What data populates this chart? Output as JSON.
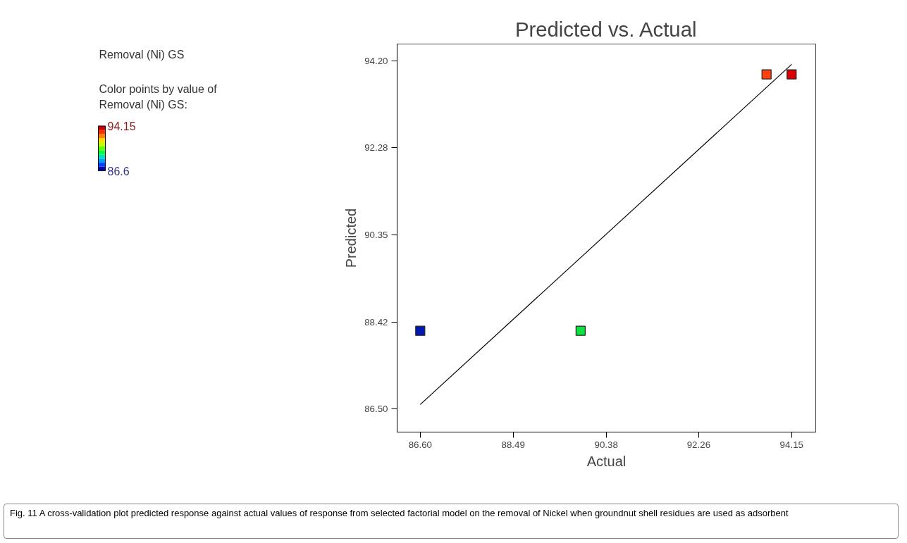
{
  "chart_data": {
    "type": "scatter",
    "title": "Predicted vs. Actual",
    "subtitle": "Removal (Ni) GS",
    "xlabel": "Actual",
    "ylabel": "Predicted",
    "clabel": "Color points by value of\nRemoval (Ni) GS:",
    "x": [
      86.6,
      89.86,
      93.64,
      94.15
    ],
    "series": [
      {
        "values": [
          88.23,
          88.23,
          93.9,
          93.9
        ],
        "colors": [
          "#0018b0",
          "#10e040",
          "#ff4010",
          "#dd0000"
        ]
      },
      {
        "type": "line",
        "color": "#000000",
        "marker": "none",
        "x": [
          86.6,
          94.15
        ],
        "values": [
          86.6,
          94.12
        ]
      }
    ],
    "clim": [
      86.6,
      94.15
    ],
    "cticks": [
      {
        "value": 86.6,
        "label": "86.6"
      },
      {
        "value": 94.15,
        "label": "94.15"
      }
    ],
    "xlim": [
      86.13,
      94.64
    ],
    "ylim": [
      85.99,
      94.57
    ],
    "xticks": [
      {
        "value": 86.6,
        "label": "86.60"
      },
      {
        "value": 88.49,
        "label": "88.49"
      },
      {
        "value": 90.38,
        "label": "90.38"
      },
      {
        "value": 92.26,
        "label": "92.26"
      },
      {
        "value": 94.15,
        "label": "94.15"
      }
    ],
    "yticks": [
      {
        "value": 86.5,
        "label": "86.50"
      },
      {
        "value": 88.42,
        "label": "88.42"
      },
      {
        "value": 90.35,
        "label": "90.35"
      },
      {
        "value": 92.28,
        "label": "92.28"
      },
      {
        "value": 94.2,
        "label": "94.20"
      }
    ],
    "marker": "square",
    "grid": false,
    "annotations": [
      "Fig. 11  A cross-validation plot predicted response against actual values of response from selected factorial model on the removal of Nickel when groundnut shell residues are used as adsorbent"
    ]
  }
}
